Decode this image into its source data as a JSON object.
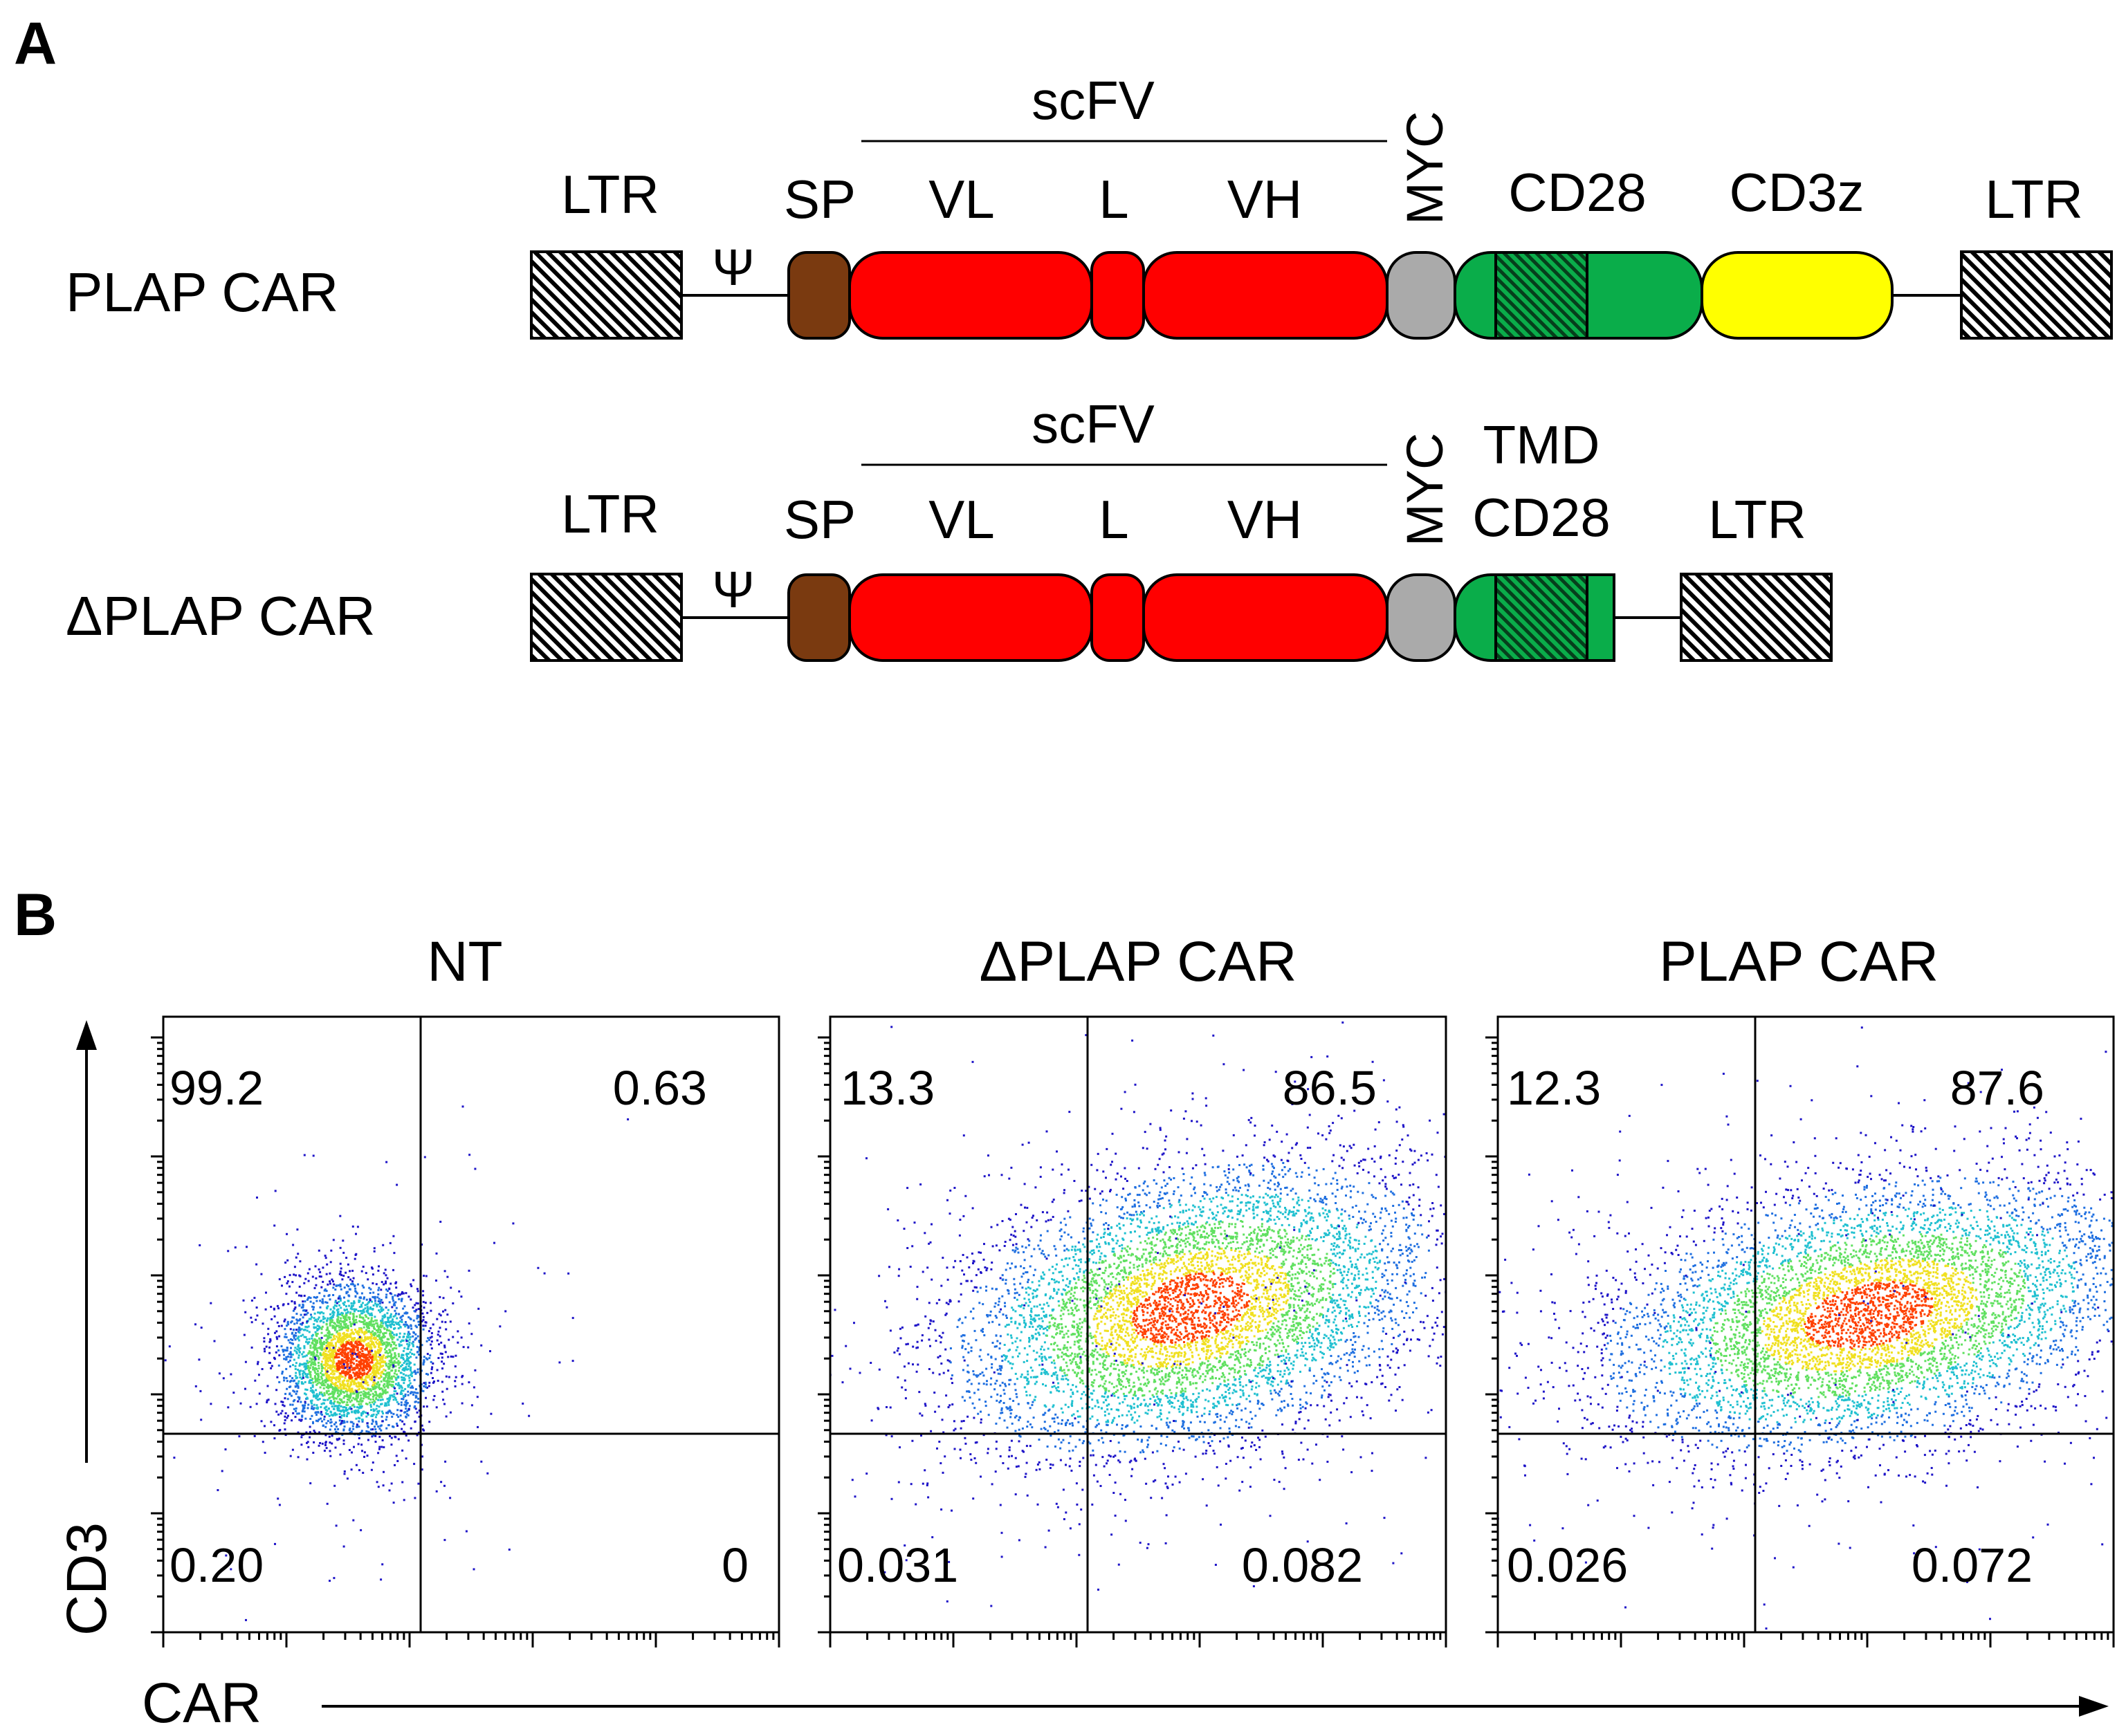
{
  "panel_a": {
    "letter": "A",
    "constructs": [
      {
        "name": "PLAP CAR",
        "scfv_label": "scFV",
        "left_ltr": "LTR",
        "psi": "Ψ",
        "sp": "SP",
        "vl": "VL",
        "linker": "L",
        "vh": "VH",
        "myc": "MYC",
        "cd28_lines": [
          "CD28"
        ],
        "cd3z": "CD3z",
        "right_ltr": "LTR"
      },
      {
        "name": "ΔPLAP CAR",
        "scfv_label": "scFV",
        "left_ltr": "LTR",
        "psi": "Ψ",
        "sp": "SP",
        "vl": "VL",
        "linker": "L",
        "vh": "VH",
        "myc": "MYC",
        "cd28_lines": [
          "TMD",
          "CD28"
        ],
        "right_ltr": "LTR"
      }
    ],
    "colors": {
      "sp": "#7a3a10",
      "scfv": "#ff0000",
      "myc": "#aaaaaa",
      "cd28": "#0aad4a",
      "cd28_tmd_hatch": "#064d22",
      "cd3z": "#ffff00",
      "ltr_hatch": "#000000"
    }
  },
  "panel_b": {
    "letter": "B",
    "y_axis_label": "CD3",
    "x_axis_label": "CAR",
    "plots": [
      {
        "title": "NT",
        "quadrants": {
          "upper_left": "99.2",
          "upper_right": "0.63",
          "lower_left": "0.20",
          "lower_right": "0"
        }
      },
      {
        "title": "ΔPLAP CAR",
        "quadrants": {
          "upper_left": "13.3",
          "upper_right": "86.5",
          "lower_left": "0.031",
          "lower_right": "0.082"
        }
      },
      {
        "title": "PLAP CAR",
        "quadrants": {
          "upper_left": "12.3",
          "upper_right": "87.6",
          "lower_left": "0.026",
          "lower_right": "0.072"
        }
      }
    ],
    "density_colors": [
      "#1e14c8",
      "#1f6fe0",
      "#20c0d0",
      "#60e060",
      "#f0e020",
      "#ff4000"
    ]
  }
}
